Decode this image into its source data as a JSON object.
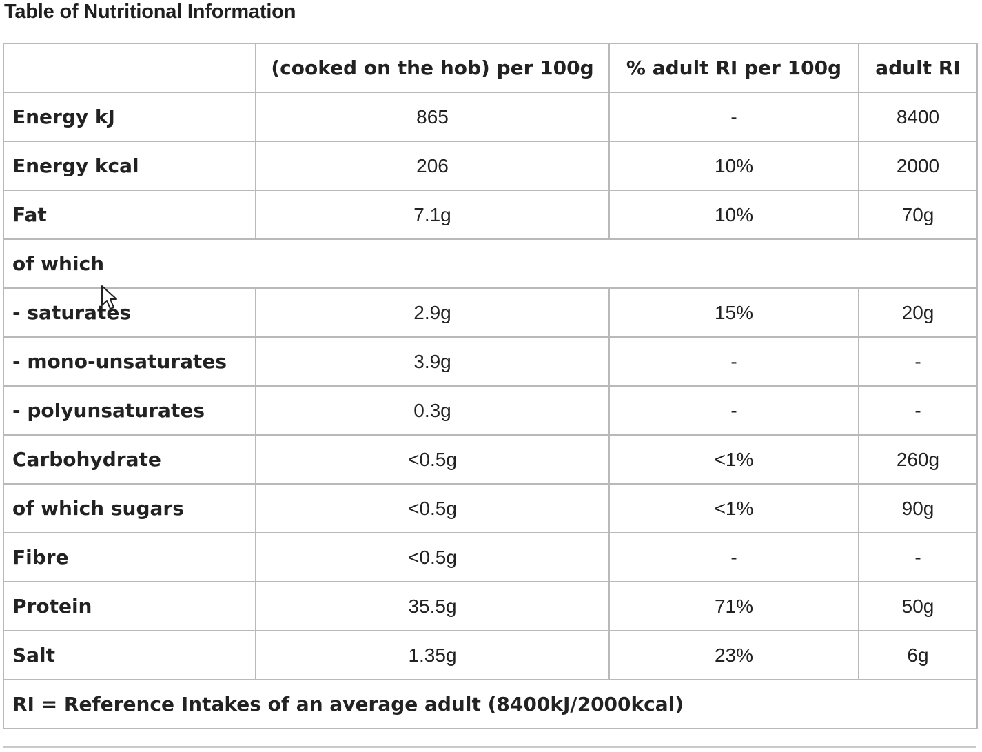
{
  "title": "Table of Nutritional Information",
  "table": {
    "headers": [
      "",
      "(cooked on the hob) per 100g",
      "% adult RI per 100g",
      "adult RI"
    ],
    "rows": [
      {
        "label": "Energy kJ",
        "per100": "865",
        "pct": "-",
        "ri": "8400"
      },
      {
        "label": "Energy kcal",
        "per100": "206",
        "pct": "10%",
        "ri": "2000"
      },
      {
        "label": "Fat",
        "per100": "7.1g",
        "pct": "10%",
        "ri": "70g"
      },
      {
        "label": "of which",
        "span": true
      },
      {
        "label": "- saturates",
        "per100": "2.9g",
        "pct": "15%",
        "ri": "20g"
      },
      {
        "label": "- mono-unsaturates",
        "per100": "3.9g",
        "pct": "-",
        "ri": "-"
      },
      {
        "label": "- polyunsaturates",
        "per100": "0.3g",
        "pct": "-",
        "ri": "-"
      },
      {
        "label": "Carbohydrate",
        "per100": "<0.5g",
        "pct": "<1%",
        "ri": "260g"
      },
      {
        "label": "of which sugars",
        "per100": "<0.5g",
        "pct": "<1%",
        "ri": "90g"
      },
      {
        "label": "Fibre",
        "per100": "<0.5g",
        "pct": "-",
        "ri": "-"
      },
      {
        "label": "Protein",
        "per100": "35.5g",
        "pct": "71%",
        "ri": "50g"
      },
      {
        "label": "Salt",
        "per100": "1.35g",
        "pct": "23%",
        "ri": "6g"
      }
    ],
    "footnote": "RI = Reference Intakes of an average adult (8400kJ/2000kcal)"
  },
  "colors": {
    "border": "#b9b9b9",
    "text": "#222222",
    "background": "#ffffff"
  },
  "cursor": {
    "icon": "mouse-pointer-icon"
  }
}
